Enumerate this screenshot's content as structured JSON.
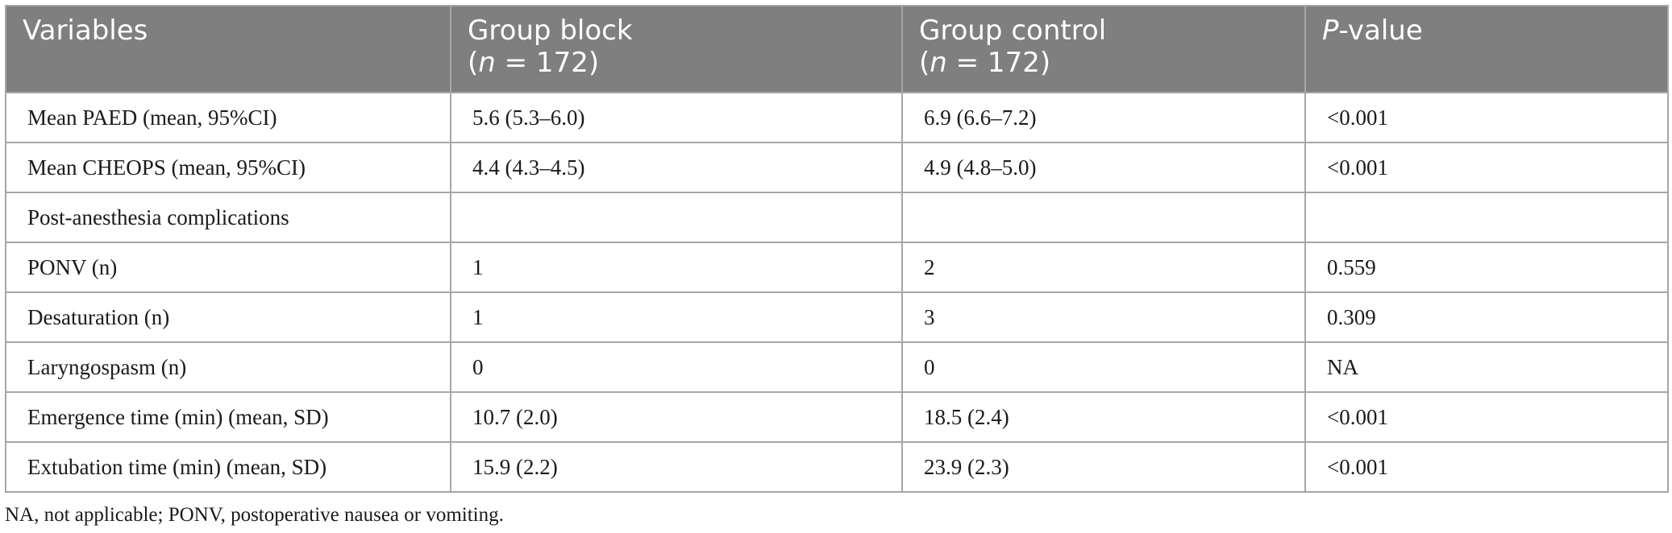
{
  "table": {
    "headers": {
      "variables": "Variables",
      "group_block": {
        "line1": "Group block",
        "n_italic": "n",
        "n_rest": " = 172)"
      },
      "group_control": {
        "line1": "Group control",
        "n_italic": "n",
        "n_rest": " = 172)"
      },
      "p_value": {
        "p_italic": "P",
        "rest": "-value"
      }
    },
    "rows": [
      {
        "variable": "Mean PAED (mean, 95%CI)",
        "block": "5.6 (5.3–6.0)",
        "control": "6.9 (6.6–7.2)",
        "p": "<0.001"
      },
      {
        "variable": "Mean CHEOPS (mean, 95%CI)",
        "block": "4.4 (4.3–4.5)",
        "control": "4.9 (4.8–5.0)",
        "p": "<0.001"
      },
      {
        "variable": "Post-anesthesia complications",
        "block": "",
        "control": "",
        "p": ""
      },
      {
        "variable": "PONV (n)",
        "block": "1",
        "control": "2",
        "p": "0.559"
      },
      {
        "variable": "Desaturation (n)",
        "block": "1",
        "control": "3",
        "p": "0.309"
      },
      {
        "variable": "Laryngospasm (n)",
        "block": "0",
        "control": "0",
        "p": "NA"
      },
      {
        "variable": "Emergence time (min) (mean, SD)",
        "block": "10.7 (2.0)",
        "control": "18.5 (2.4)",
        "p": "<0.001"
      },
      {
        "variable": "Extubation time (min) (mean, SD)",
        "block": "15.9 (2.2)",
        "control": "23.9 (2.3)",
        "p": "<0.001"
      }
    ]
  },
  "footnote": "NA, not applicable; PONV, postoperative nausea or vomiting."
}
